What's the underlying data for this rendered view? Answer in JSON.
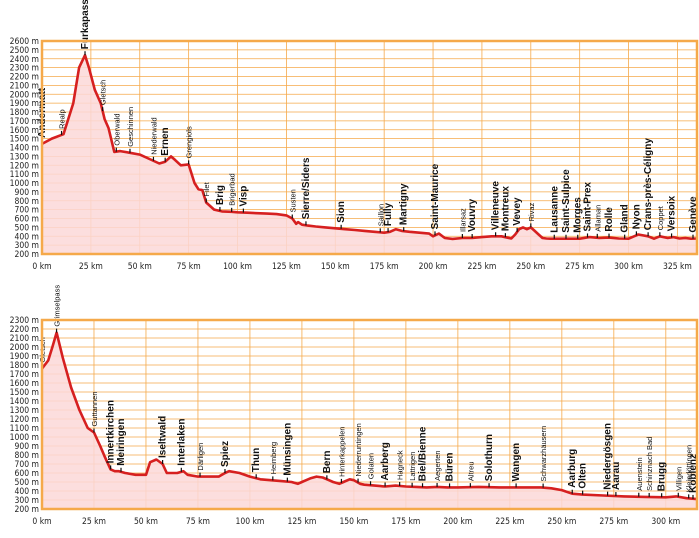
{
  "chart_data": [
    {
      "type": "area",
      "title": "",
      "xlabel": "",
      "ylabel": "",
      "xlim": [
        0,
        335
      ],
      "ylim": [
        200,
        2600
      ],
      "xticks": [
        0,
        25,
        50,
        75,
        100,
        125,
        150,
        175,
        200,
        225,
        250,
        275,
        300,
        325
      ],
      "xtick_labels": [
        "0 km",
        "25 km",
        "50 km",
        "75 km",
        "100 km",
        "125 km",
        "150 km",
        "175 km",
        "200 km",
        "225 km",
        "250 km",
        "275 km",
        "300 km",
        "325 km"
      ],
      "yticks": [
        200,
        300,
        400,
        500,
        600,
        700,
        800,
        900,
        1000,
        1100,
        1200,
        1300,
        1400,
        1500,
        1600,
        1700,
        1800,
        1900,
        2000,
        2100,
        2200,
        2300,
        2400,
        2500,
        2600
      ],
      "ytick_labels": [
        "200 m",
        "300 m",
        "400 m",
        "500 m",
        "600 m",
        "700 m",
        "800 m",
        "900 m",
        "1000 m",
        "1100 m",
        "1200 m",
        "1300 m",
        "1400 m",
        "1500 m",
        "1600 m",
        "1700 m",
        "1800 m",
        "1900 m",
        "2000 m",
        "2100 m",
        "2200 m",
        "2300 m",
        "2400 m",
        "2500 m",
        "2600 m"
      ],
      "grid": true,
      "colors": {
        "line": "#d62020",
        "fill": "#fbd8d8",
        "frame": "#f5a94a"
      },
      "series": [
        {
          "x": [
            0,
            5,
            11,
            16,
            19,
            22,
            24,
            27,
            30,
            32,
            34,
            37,
            40,
            45,
            50,
            55,
            60,
            63,
            66,
            68,
            71,
            75,
            78,
            80,
            82,
            84,
            88,
            90,
            92,
            97,
            100,
            105,
            110,
            115,
            120,
            125,
            128,
            130,
            131,
            133,
            136,
            140,
            145,
            150,
            155,
            160,
            165,
            170,
            175,
            178,
            181,
            184,
            188,
            193,
            198,
            200,
            203,
            206,
            210,
            215,
            220,
            225,
            230,
            235,
            240,
            242,
            244,
            246,
            248,
            250,
            252,
            254,
            256,
            258,
            260,
            265,
            270,
            275,
            280,
            285,
            290,
            295,
            300,
            305,
            310,
            313,
            316,
            320,
            323,
            326,
            329,
            332,
            335
          ],
          "y": [
            1440,
            1500,
            1550,
            1900,
            2300,
            2440,
            2300,
            2050,
            1900,
            1720,
            1620,
            1350,
            1360,
            1340,
            1320,
            1270,
            1220,
            1240,
            1300,
            1260,
            1200,
            1210,
            1000,
            930,
            920,
            780,
            700,
            690,
            680,
            675,
            670,
            665,
            660,
            655,
            650,
            635,
            600,
            540,
            560,
            530,
            520,
            510,
            500,
            490,
            480,
            470,
            460,
            450,
            440,
            450,
            480,
            460,
            450,
            440,
            430,
            400,
            430,
            380,
            370,
            380,
            380,
            390,
            400,
            400,
            375,
            420,
            480,
            500,
            480,
            500,
            460,
            420,
            380,
            375,
            372,
            372,
            372,
            372,
            390,
            380,
            385,
            375,
            372,
            420,
            400,
            372,
            400,
            380,
            390,
            375,
            380,
            372,
            375
          ]
        }
      ],
      "places": [
        {
          "km": 0,
          "label": "Andermatt",
          "major": true
        },
        {
          "km": 10,
          "label": "Realp",
          "major": false
        },
        {
          "km": 22,
          "label": "Furkapass",
          "major": true
        },
        {
          "km": 31,
          "label": "Gletsch",
          "major": false
        },
        {
          "km": 38,
          "label": "Oberwald",
          "major": false
        },
        {
          "km": 45,
          "label": "Geschinnen",
          "major": false
        },
        {
          "km": 57,
          "label": "Niederwald",
          "major": false
        },
        {
          "km": 63,
          "label": "Ernen",
          "major": true
        },
        {
          "km": 75,
          "label": "Grengiols",
          "major": false
        },
        {
          "km": 84,
          "label": "Filet",
          "major": false
        },
        {
          "km": 91,
          "label": "Brig",
          "major": true
        },
        {
          "km": 97,
          "label": "Brigerbad",
          "major": false
        },
        {
          "km": 103,
          "label": "Visp",
          "major": true
        },
        {
          "km": 128,
          "label": "Susten",
          "major": false
        },
        {
          "km": 135,
          "label": "Sierre/Siders",
          "major": true
        },
        {
          "km": 153,
          "label": "Sion",
          "major": true
        },
        {
          "km": 173,
          "label": "Saillon",
          "major": false
        },
        {
          "km": 177,
          "label": "Fully",
          "major": true
        },
        {
          "km": 185,
          "label": "Martigny",
          "major": true
        },
        {
          "km": 201,
          "label": "Saint-Maurice",
          "major": true
        },
        {
          "km": 215,
          "label": "Illarsaz",
          "major": false
        },
        {
          "km": 220,
          "label": "Vouvry",
          "major": true
        },
        {
          "km": 232,
          "label": "Villeneuve",
          "major": true
        },
        {
          "km": 237,
          "label": "Montreux",
          "major": true
        },
        {
          "km": 243,
          "label": "Vevey",
          "major": true
        },
        {
          "km": 250,
          "label": "Rivaz",
          "major": false
        },
        {
          "km": 262,
          "label": "Lausanne",
          "major": true
        },
        {
          "km": 268,
          "label": "Saint-Sulpice",
          "major": true
        },
        {
          "km": 274,
          "label": "Morges",
          "major": true
        },
        {
          "km": 279,
          "label": "Saint-Prex",
          "major": true
        },
        {
          "km": 284,
          "label": "Allaman",
          "major": false
        },
        {
          "km": 290,
          "label": "Rolle",
          "major": true
        },
        {
          "km": 298,
          "label": "Gland",
          "major": true
        },
        {
          "km": 304,
          "label": "Nyon",
          "major": true
        },
        {
          "km": 310,
          "label": "Crans-près-Céligny",
          "major": true
        },
        {
          "km": 316,
          "label": "Coppet",
          "major": false
        },
        {
          "km": 322,
          "label": "Versoix",
          "major": true
        },
        {
          "km": 333,
          "label": "Genève",
          "major": true
        }
      ]
    },
    {
      "type": "area",
      "title": "",
      "xlabel": "",
      "ylabel": "",
      "xlim": [
        0,
        315
      ],
      "ylim": [
        200,
        2300
      ],
      "xticks": [
        0,
        25,
        50,
        75,
        100,
        125,
        150,
        175,
        200,
        225,
        250,
        275,
        300
      ],
      "xtick_labels": [
        "0 km",
        "25 km",
        "50 km",
        "75 km",
        "100 km",
        "125 km",
        "150 km",
        "175 km",
        "200 km",
        "225 km",
        "250 km",
        "275 km",
        "300 km"
      ],
      "yticks": [
        200,
        300,
        400,
        500,
        600,
        700,
        800,
        900,
        1000,
        1100,
        1200,
        1300,
        1400,
        1500,
        1600,
        1700,
        1800,
        1900,
        2000,
        2100,
        2200,
        2300
      ],
      "ytick_labels": [
        "200 m",
        "300 m",
        "400 m",
        "500 m",
        "600 m",
        "700 m",
        "800 m",
        "900 m",
        "1000 m",
        "1100 m",
        "1200 m",
        "1300 m",
        "1400 m",
        "1500 m",
        "1600 m",
        "1700 m",
        "1800 m",
        "1900 m",
        "2000 m",
        "2100 m",
        "2200 m",
        "2300 m"
      ],
      "grid": true,
      "colors": {
        "line": "#d62020",
        "fill": "#fbd8d8",
        "frame": "#f5a94a"
      },
      "series": [
        {
          "x": [
            0,
            3,
            5,
            7,
            10,
            14,
            18,
            22,
            25,
            28,
            30,
            33,
            35,
            37,
            40,
            45,
            50,
            52,
            55,
            58,
            60,
            63,
            65,
            68,
            70,
            75,
            80,
            85,
            88,
            90,
            95,
            100,
            105,
            110,
            115,
            120,
            123,
            125,
            127,
            129,
            132,
            135,
            138,
            140,
            143,
            145,
            148,
            150,
            153,
            155,
            160,
            165,
            170,
            175,
            180,
            185,
            190,
            195,
            200,
            210,
            220,
            230,
            240,
            245,
            250,
            255,
            260,
            270,
            280,
            290,
            300,
            305,
            310,
            315
          ],
          "y": [
            1760,
            1850,
            2000,
            2160,
            1880,
            1550,
            1300,
            1100,
            1050,
            900,
            790,
            640,
            620,
            620,
            600,
            580,
            580,
            720,
            750,
            700,
            600,
            600,
            600,
            620,
            580,
            560,
            560,
            560,
            600,
            620,
            600,
            560,
            530,
            520,
            510,
            500,
            480,
            500,
            520,
            540,
            560,
            550,
            520,
            500,
            480,
            500,
            530,
            520,
            480,
            470,
            460,
            450,
            460,
            450,
            445,
            440,
            445,
            440,
            440,
            445,
            440,
            440,
            440,
            430,
            410,
            370,
            360,
            350,
            340,
            335,
            330,
            340,
            320,
            310
          ]
        }
      ],
      "places": [
        {
          "km": 0,
          "label": "Gletsch",
          "major": false
        },
        {
          "km": 7,
          "label": "Grimselpass",
          "major": false
        },
        {
          "km": 25,
          "label": "Guttannen",
          "major": false
        },
        {
          "km": 33,
          "label": "Innertkirchen",
          "major": true
        },
        {
          "km": 38,
          "label": "Meiringen",
          "major": true
        },
        {
          "km": 58,
          "label": "Iseltwald",
          "major": true
        },
        {
          "km": 67,
          "label": "Interlaken",
          "major": true
        },
        {
          "km": 76,
          "label": "Därligen",
          "major": false
        },
        {
          "km": 88,
          "label": "Spiez",
          "major": true
        },
        {
          "km": 103,
          "label": "Thun",
          "major": true
        },
        {
          "km": 111,
          "label": "Heimberg",
          "major": false
        },
        {
          "km": 118,
          "label": "Münsingen",
          "major": true
        },
        {
          "km": 137,
          "label": "Bern",
          "major": true
        },
        {
          "km": 144,
          "label": "Hinterkappelen",
          "major": false
        },
        {
          "km": 152,
          "label": "Niederruntingen",
          "major": false
        },
        {
          "km": 158,
          "label": "Golaten",
          "major": false
        },
        {
          "km": 165,
          "label": "Aarberg",
          "major": true
        },
        {
          "km": 172,
          "label": "Hagneck",
          "major": false
        },
        {
          "km": 178,
          "label": "Lattrigen",
          "major": false
        },
        {
          "km": 183,
          "label": "Biel/Bienne",
          "major": true
        },
        {
          "km": 190,
          "label": "Aegerten",
          "major": false
        },
        {
          "km": 196,
          "label": "Büren",
          "major": true
        },
        {
          "km": 206,
          "label": "Altreu",
          "major": false
        },
        {
          "km": 215,
          "label": "Solothurn",
          "major": true
        },
        {
          "km": 228,
          "label": "Wangen",
          "major": true
        },
        {
          "km": 241,
          "label": "Schwarzhäusern",
          "major": false
        },
        {
          "km": 255,
          "label": "Aarburg",
          "major": true
        },
        {
          "km": 260,
          "label": "Olten",
          "major": true
        },
        {
          "km": 272,
          "label": "Niedergösgen",
          "major": true
        },
        {
          "km": 276,
          "label": "Aarau",
          "major": true
        },
        {
          "km": 287,
          "label": "Auenstein",
          "major": false
        },
        {
          "km": 292,
          "label": "Schinznach Bad",
          "major": false
        },
        {
          "km": 298,
          "label": "Brugg",
          "major": true
        },
        {
          "km": 306,
          "label": "Villigen",
          "major": false
        },
        {
          "km": 311,
          "label": "Kleindöttingen",
          "major": false
        },
        {
          "km": 314,
          "label": "Koblenz",
          "major": true
        }
      ]
    }
  ]
}
